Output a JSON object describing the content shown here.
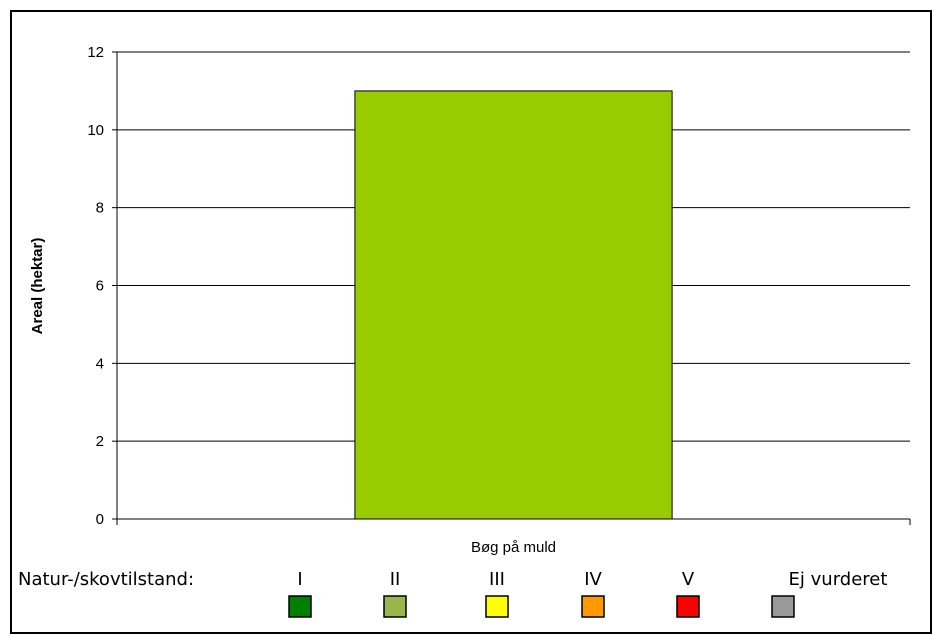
{
  "chart_data": {
    "type": "bar",
    "categories": [
      "Bøg på muld"
    ],
    "series": [
      {
        "values": [
          11.0
        ]
      }
    ],
    "bar_color": "#99cc00",
    "xlabel": "",
    "ylabel": "Areal (hektar)",
    "ylim": [
      0,
      12
    ],
    "yticks": [
      0,
      2,
      4,
      6,
      8,
      10,
      12
    ],
    "grid": true
  },
  "legend": {
    "title": "Natur-/skovtilstand:",
    "items": [
      {
        "label": "I",
        "color": "#007f00"
      },
      {
        "label": "II",
        "color": "#99b64c"
      },
      {
        "label": "III",
        "color": "#ffff00"
      },
      {
        "label": "IV",
        "color": "#ff9900"
      },
      {
        "label": "V",
        "color": "#ff0000"
      },
      {
        "label": "Ej vurderet",
        "color": "#999999"
      }
    ]
  }
}
